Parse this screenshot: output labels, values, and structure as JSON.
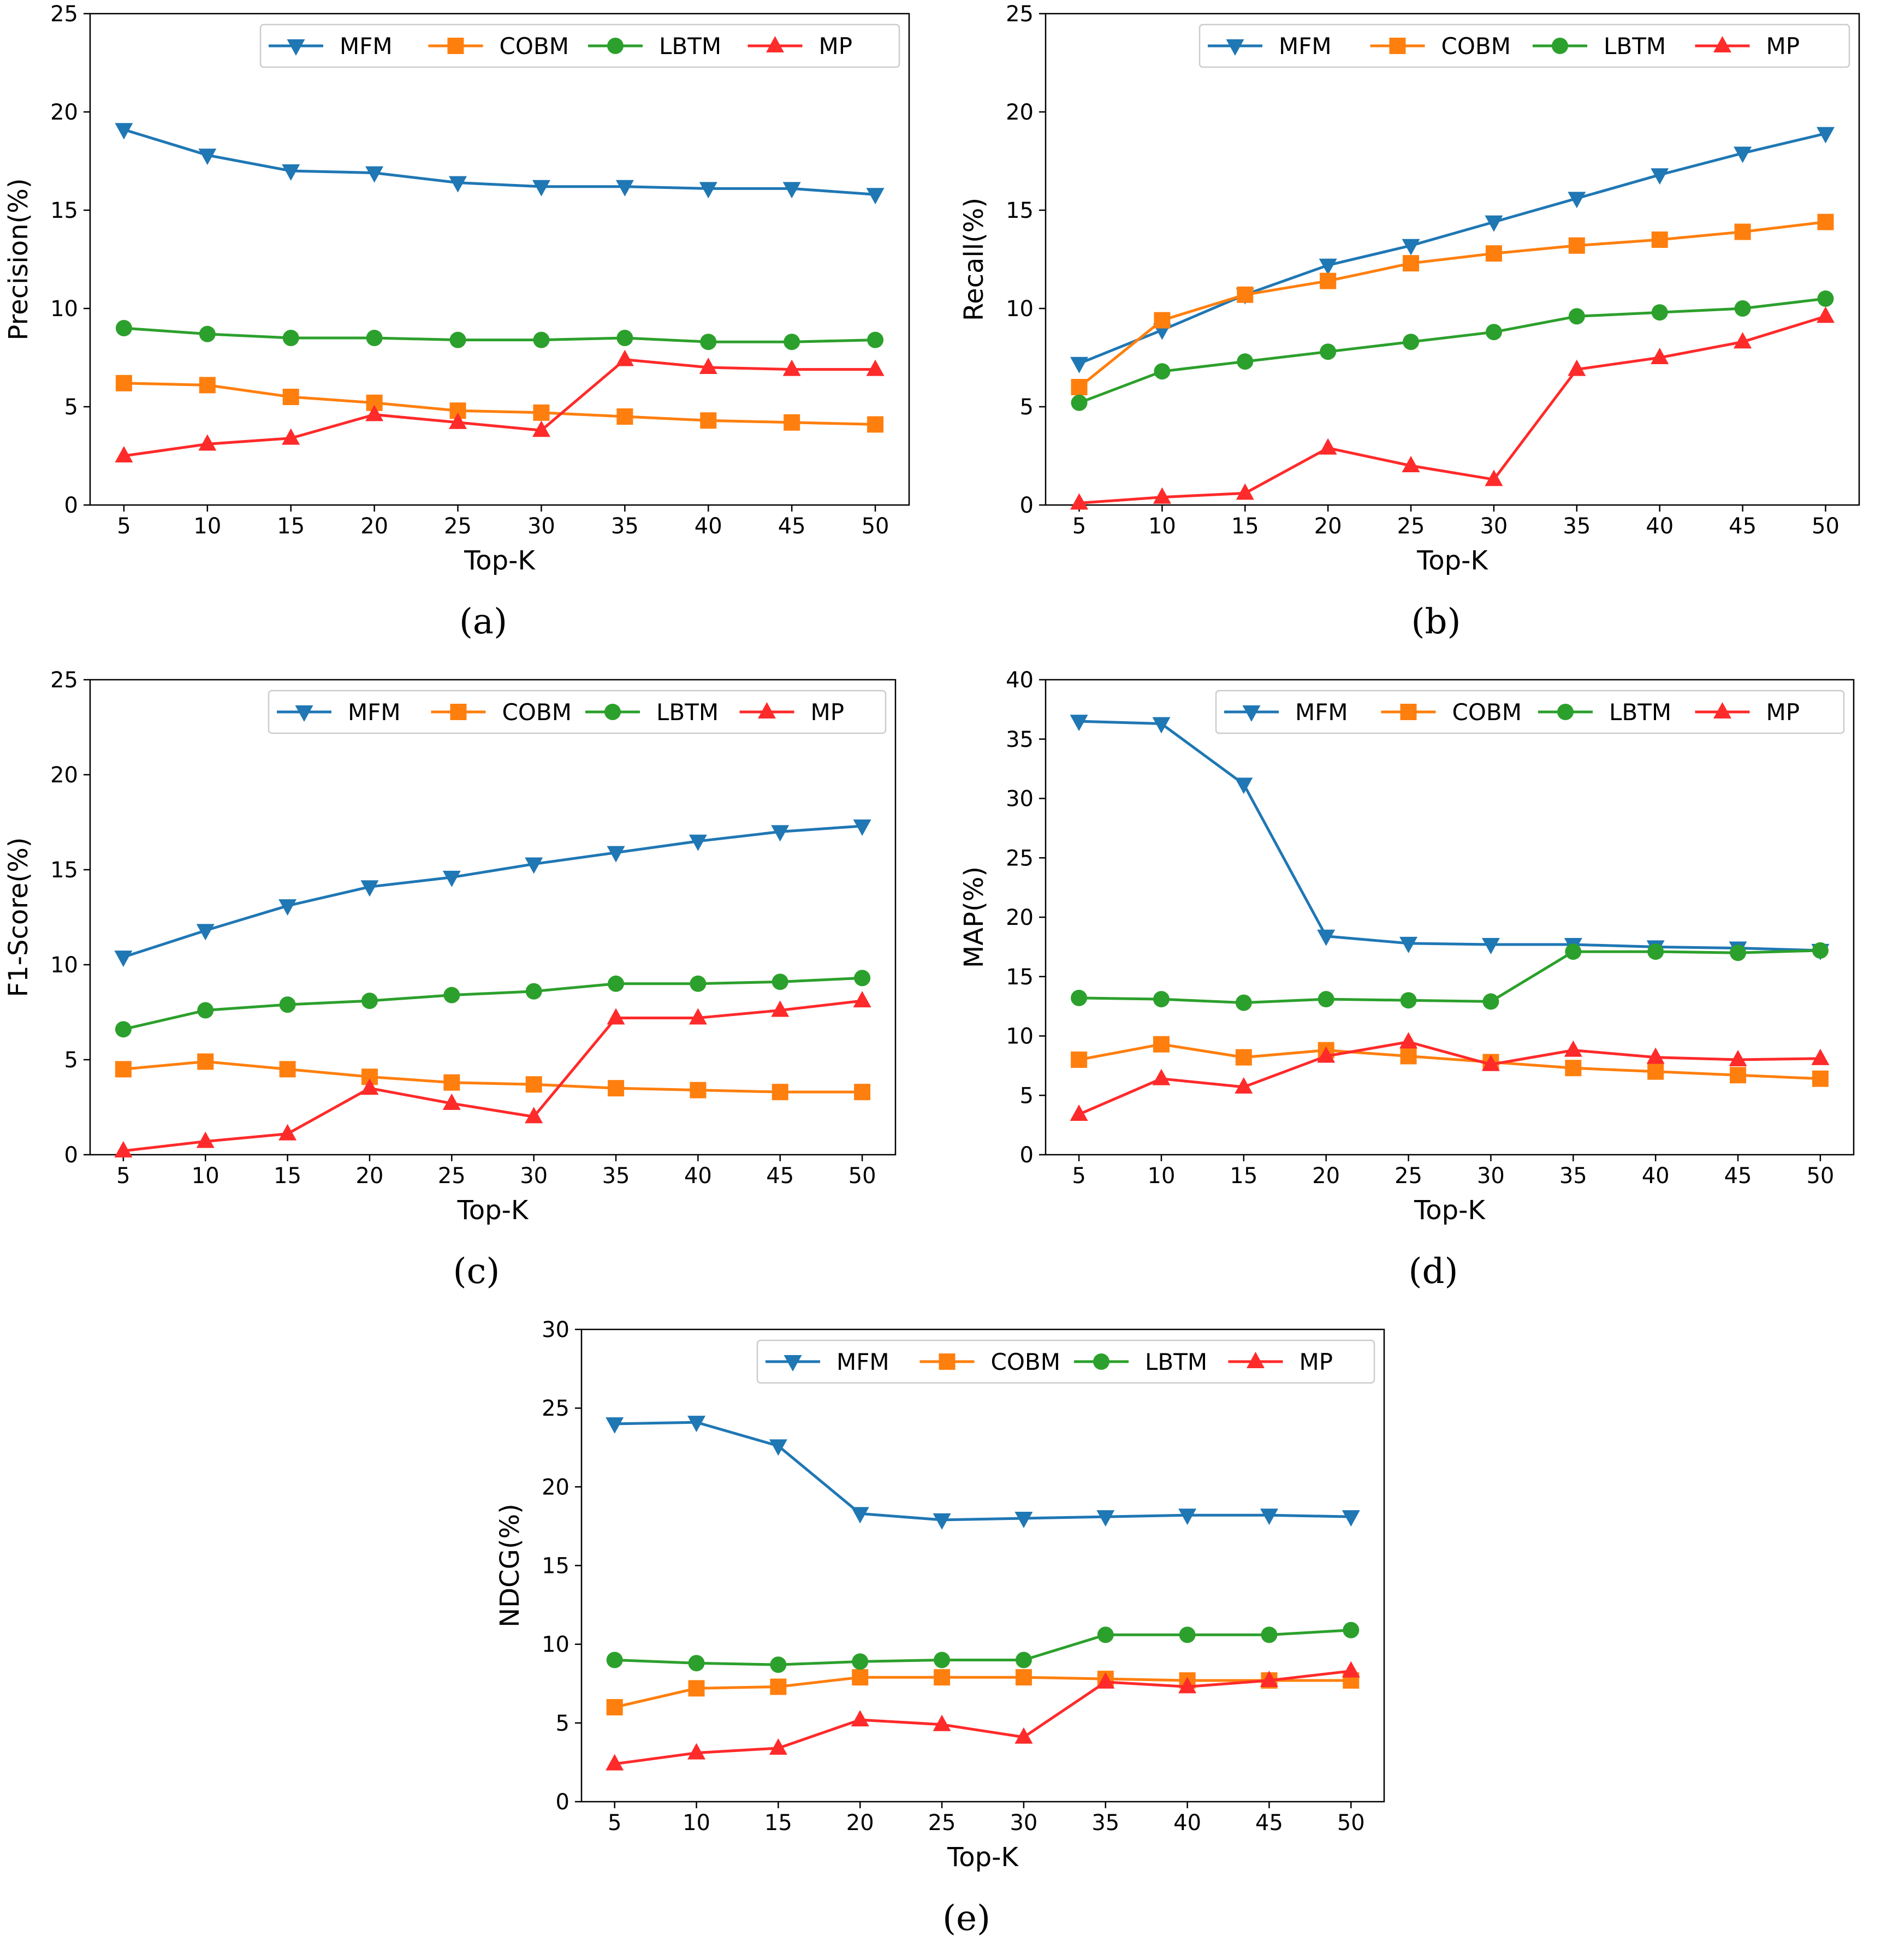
{
  "figure": {
    "colors": {
      "MFM": "#1f77b4",
      "COBM": "#ff7f0e",
      "LBTM": "#2ca02c",
      "MP": "#ff2a2a"
    },
    "markers": {
      "MFM": "triangle-down",
      "COBM": "square",
      "LBTM": "circle",
      "MP": "triangle-up"
    }
  },
  "chart_data": [
    {
      "id": "a",
      "caption": "(a)",
      "type": "line",
      "xlabel": "Top-K",
      "ylabel": "Precision(%)",
      "x": [
        5,
        10,
        15,
        20,
        25,
        30,
        35,
        40,
        45,
        50
      ],
      "xticks": [
        "5",
        "10",
        "15",
        "20",
        "25",
        "30",
        "35",
        "40",
        "45",
        "50"
      ],
      "ylim": [
        0,
        25
      ],
      "yticks": [
        0,
        5,
        10,
        15,
        20,
        25
      ],
      "legend": "top-right",
      "series": [
        {
          "name": "MFM",
          "values": [
            19.1,
            17.8,
            17.0,
            16.9,
            16.4,
            16.2,
            16.2,
            16.1,
            16.1,
            15.8
          ]
        },
        {
          "name": "COBM",
          "values": [
            6.2,
            6.1,
            5.5,
            5.2,
            4.8,
            4.7,
            4.5,
            4.3,
            4.2,
            4.1
          ]
        },
        {
          "name": "LBTM",
          "values": [
            9.0,
            8.7,
            8.5,
            8.5,
            8.4,
            8.4,
            8.5,
            8.3,
            8.3,
            8.4
          ]
        },
        {
          "name": "MP",
          "values": [
            2.5,
            3.1,
            3.4,
            4.6,
            4.2,
            3.8,
            7.4,
            7.0,
            6.9,
            6.9
          ]
        }
      ]
    },
    {
      "id": "b",
      "caption": "(b)",
      "type": "line",
      "xlabel": "Top-K",
      "ylabel": "Recall(%)",
      "x": [
        5,
        10,
        15,
        20,
        25,
        30,
        35,
        40,
        45,
        50
      ],
      "xticks": [
        "5",
        "10",
        "15",
        "20",
        "25",
        "30",
        "35",
        "40",
        "45",
        "50"
      ],
      "ylim": [
        0,
        25
      ],
      "yticks": [
        0,
        5,
        10,
        15,
        20,
        25
      ],
      "legend": "top-right",
      "series": [
        {
          "name": "MFM",
          "values": [
            7.2,
            8.9,
            10.7,
            12.2,
            13.2,
            14.4,
            15.6,
            16.8,
            17.9,
            18.9
          ]
        },
        {
          "name": "COBM",
          "values": [
            6.0,
            9.4,
            10.7,
            11.4,
            12.3,
            12.8,
            13.2,
            13.5,
            13.9,
            14.4
          ]
        },
        {
          "name": "LBTM",
          "values": [
            5.2,
            6.8,
            7.3,
            7.8,
            8.3,
            8.8,
            9.6,
            9.8,
            10.0,
            10.5
          ]
        },
        {
          "name": "MP",
          "values": [
            0.1,
            0.4,
            0.6,
            2.9,
            2.0,
            1.3,
            6.9,
            7.5,
            8.3,
            9.6
          ]
        }
      ]
    },
    {
      "id": "c",
      "caption": "(c)",
      "type": "line",
      "xlabel": "Top-K",
      "ylabel": "F1-Score(%)",
      "x": [
        5,
        10,
        15,
        20,
        25,
        30,
        35,
        40,
        45,
        50
      ],
      "xticks": [
        "5",
        "10",
        "15",
        "20",
        "25",
        "30",
        "35",
        "40",
        "45",
        "50"
      ],
      "ylim": [
        0,
        25
      ],
      "yticks": [
        0,
        5,
        10,
        15,
        20,
        25
      ],
      "legend": "top-right",
      "series": [
        {
          "name": "MFM",
          "values": [
            10.4,
            11.8,
            13.1,
            14.1,
            14.6,
            15.3,
            15.9,
            16.5,
            17.0,
            17.3
          ]
        },
        {
          "name": "COBM",
          "values": [
            4.5,
            4.9,
            4.5,
            4.1,
            3.8,
            3.7,
            3.5,
            3.4,
            3.3,
            3.3
          ]
        },
        {
          "name": "LBTM",
          "values": [
            6.6,
            7.6,
            7.9,
            8.1,
            8.4,
            8.6,
            9.0,
            9.0,
            9.1,
            9.3
          ]
        },
        {
          "name": "MP",
          "values": [
            0.2,
            0.7,
            1.1,
            3.5,
            2.7,
            2.0,
            7.2,
            7.2,
            7.6,
            8.1
          ]
        }
      ]
    },
    {
      "id": "d",
      "caption": "(d)",
      "type": "line",
      "xlabel": "Top-K",
      "ylabel": "MAP(%)",
      "x": [
        5,
        10,
        15,
        20,
        25,
        30,
        35,
        40,
        45,
        50
      ],
      "xticks": [
        "5",
        "10",
        "15",
        "20",
        "25",
        "30",
        "35",
        "40",
        "45",
        "50"
      ],
      "ylim": [
        0,
        40
      ],
      "yticks": [
        0,
        5,
        10,
        15,
        20,
        25,
        30,
        35,
        40
      ],
      "legend": "top-right",
      "series": [
        {
          "name": "MFM",
          "values": [
            36.5,
            36.3,
            31.2,
            18.4,
            17.8,
            17.7,
            17.7,
            17.5,
            17.4,
            17.2
          ]
        },
        {
          "name": "COBM",
          "values": [
            8.0,
            9.3,
            8.2,
            8.8,
            8.3,
            7.8,
            7.3,
            7.0,
            6.7,
            6.4
          ]
        },
        {
          "name": "LBTM",
          "values": [
            13.2,
            13.1,
            12.8,
            13.1,
            13.0,
            12.9,
            17.1,
            17.1,
            17.0,
            17.2
          ]
        },
        {
          "name": "MP",
          "values": [
            3.4,
            6.4,
            5.7,
            8.3,
            9.5,
            7.6,
            8.8,
            8.2,
            8.0,
            8.1
          ]
        }
      ]
    },
    {
      "id": "e",
      "caption": "(e)",
      "type": "line",
      "xlabel": "Top-K",
      "ylabel": "NDCG(%)",
      "x": [
        5,
        10,
        15,
        20,
        25,
        30,
        35,
        40,
        45,
        50
      ],
      "xticks": [
        "5",
        "10",
        "15",
        "20",
        "25",
        "30",
        "35",
        "40",
        "45",
        "50"
      ],
      "ylim": [
        0,
        30
      ],
      "yticks": [
        0,
        5,
        10,
        15,
        20,
        25,
        30
      ],
      "legend": "top-right",
      "series": [
        {
          "name": "MFM",
          "values": [
            24.0,
            24.1,
            22.6,
            18.3,
            17.9,
            18.0,
            18.1,
            18.2,
            18.2,
            18.1
          ]
        },
        {
          "name": "COBM",
          "values": [
            6.0,
            7.2,
            7.3,
            7.9,
            7.9,
            7.9,
            7.8,
            7.7,
            7.7,
            7.7
          ]
        },
        {
          "name": "LBTM",
          "values": [
            9.0,
            8.8,
            8.7,
            8.9,
            9.0,
            9.0,
            10.6,
            10.6,
            10.6,
            10.9
          ]
        },
        {
          "name": "MP",
          "values": [
            2.4,
            3.1,
            3.4,
            5.2,
            4.9,
            4.1,
            7.6,
            7.3,
            7.7,
            8.3
          ]
        }
      ]
    }
  ]
}
